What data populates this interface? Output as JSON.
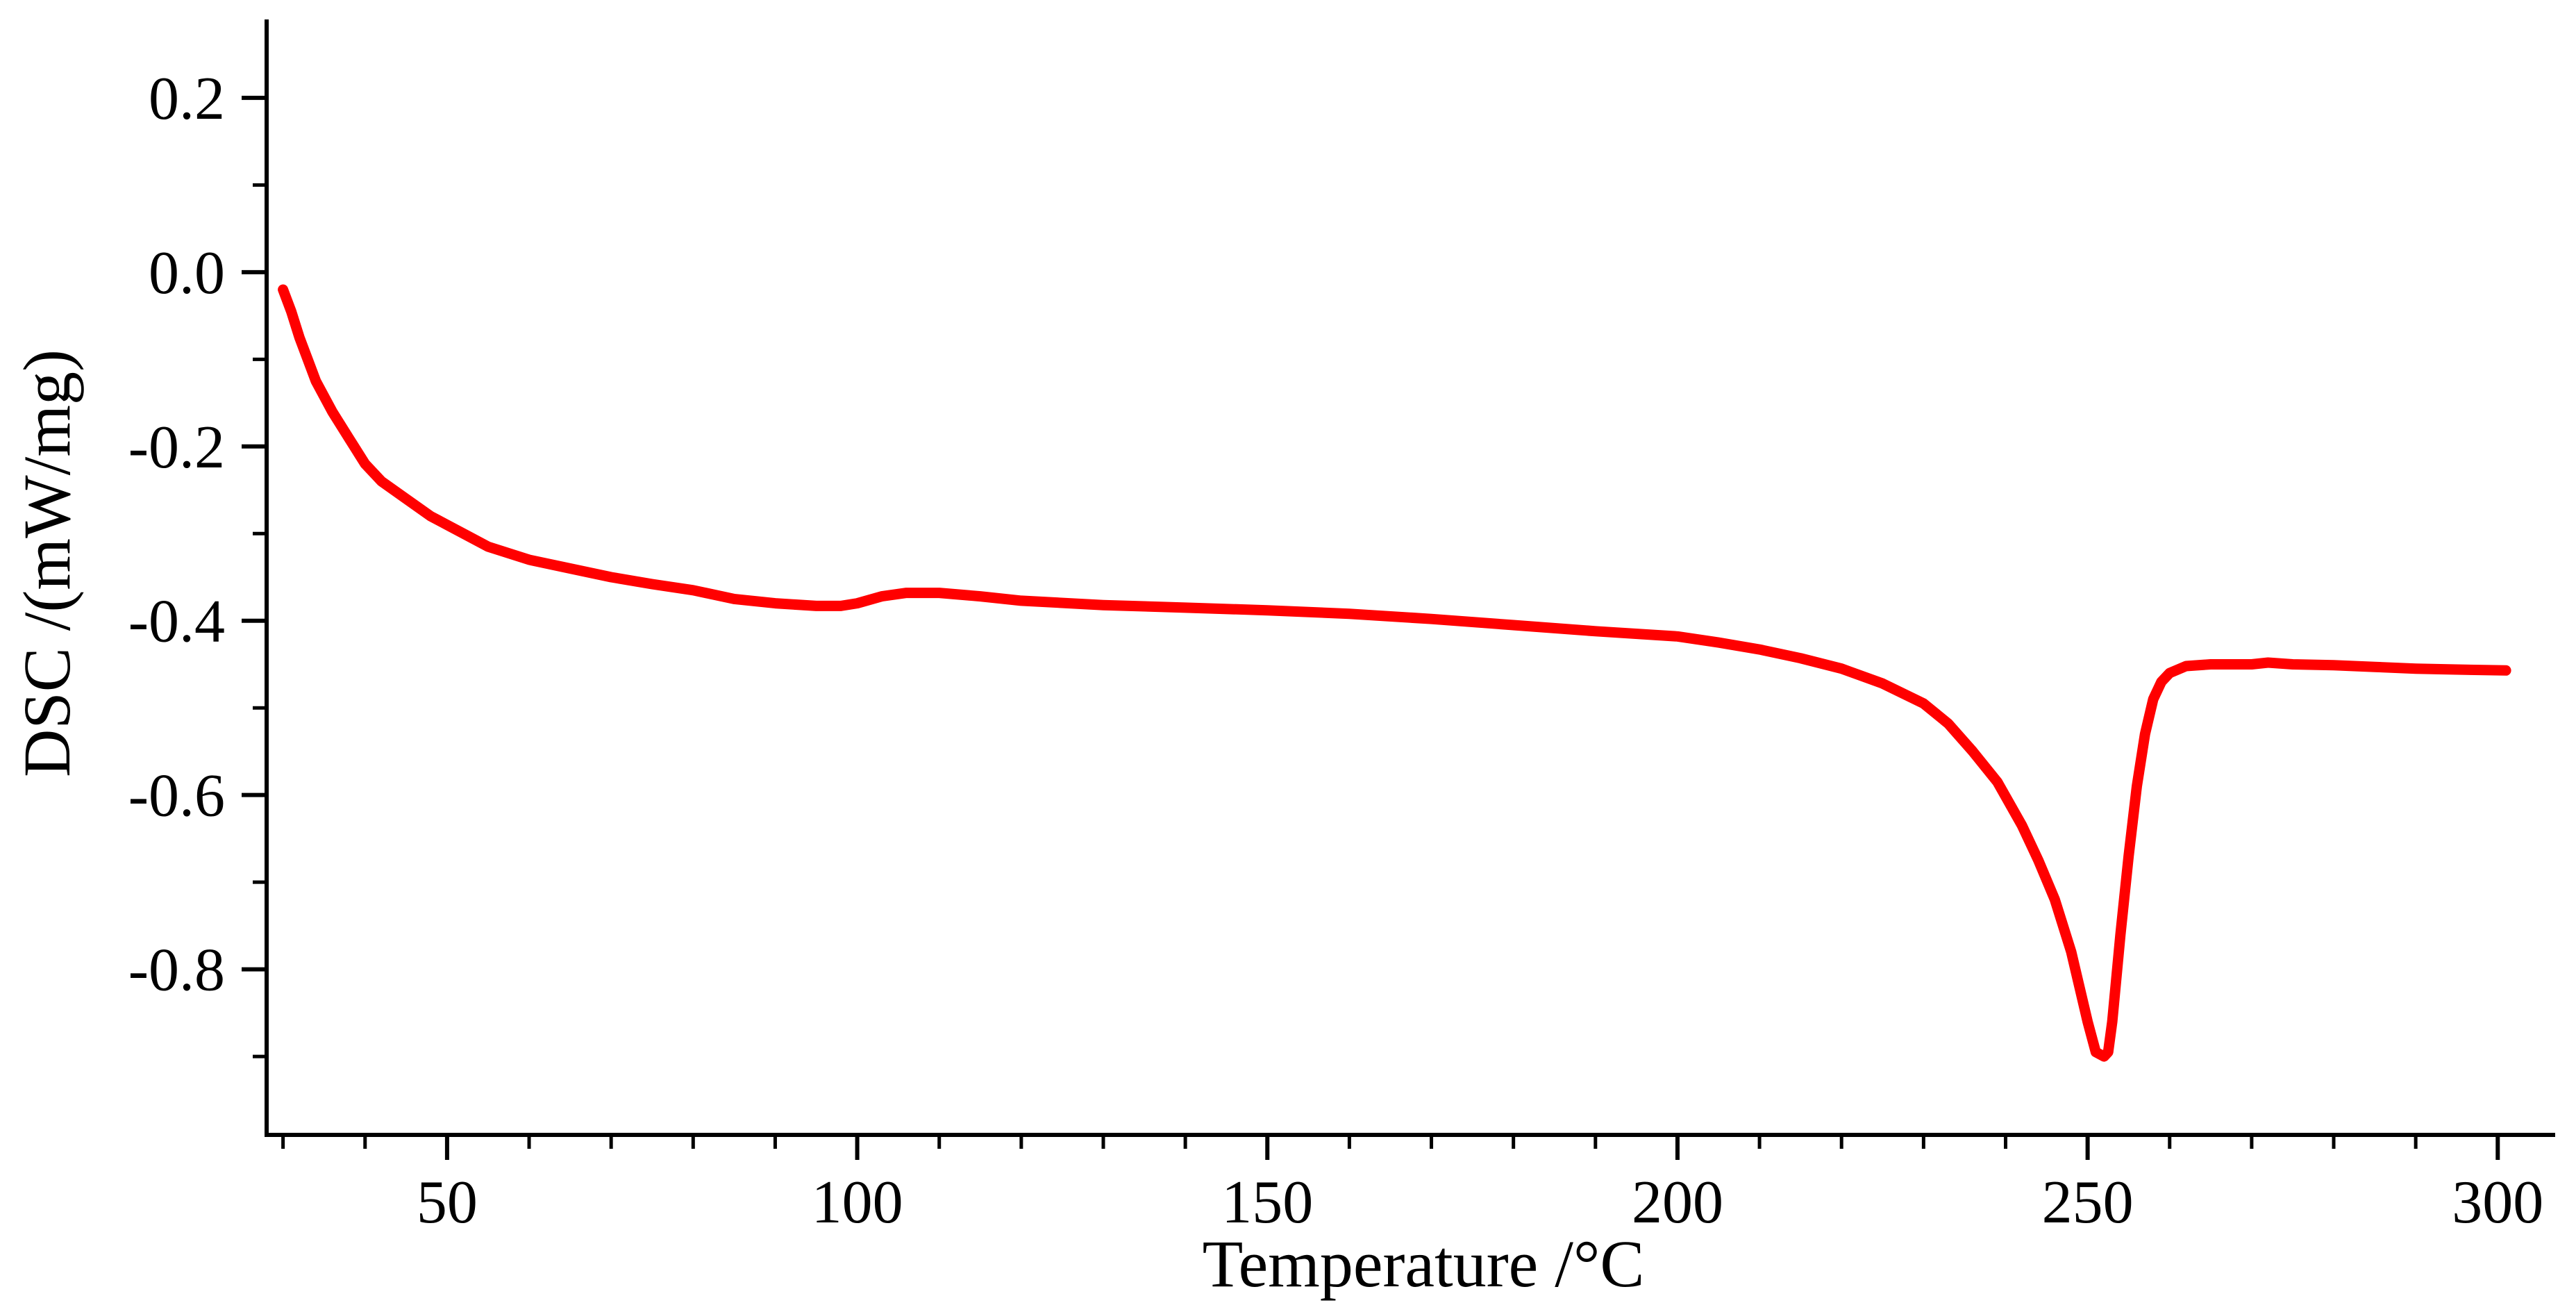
{
  "chart_data": {
    "type": "line",
    "title": "",
    "xlabel": "Temperature /°C",
    "ylabel": "DSC /(mW/mg)",
    "xlim": [
      28,
      307
    ],
    "ylim": [
      -0.99,
      0.29
    ],
    "x_ticks": [
      50,
      100,
      150,
      200,
      250,
      300
    ],
    "x_tick_labels": [
      "50",
      "100",
      "150",
      "200",
      "250",
      "300"
    ],
    "y_ticks": [
      0.2,
      0.0,
      -0.2,
      -0.4,
      -0.6,
      -0.8
    ],
    "y_tick_labels": [
      "0.2",
      "0.0",
      "-0.2",
      "-0.4",
      "-0.6",
      "-0.8"
    ],
    "x_minor_step": 10,
    "y_minor_step": 0.1,
    "grid": false,
    "legend": "none",
    "series": [
      {
        "color": "#ff0000",
        "x": [
          30,
          31,
          32,
          33,
          34,
          36,
          38,
          40,
          42,
          45,
          48,
          50,
          55,
          60,
          65,
          70,
          75,
          80,
          85,
          90,
          95,
          98,
          100,
          103,
          106,
          110,
          115,
          120,
          130,
          140,
          150,
          160,
          170,
          180,
          190,
          200,
          205,
          210,
          215,
          220,
          225,
          230,
          233,
          236,
          239,
          242,
          244,
          246,
          248,
          249,
          250,
          251,
          252,
          252.5,
          253,
          253.5,
          254,
          255,
          256,
          257,
          258,
          259,
          260,
          262,
          265,
          270,
          272,
          275,
          280,
          285,
          290,
          295,
          301
        ],
        "y": [
          -0.02,
          -0.045,
          -0.075,
          -0.1,
          -0.125,
          -0.16,
          -0.19,
          -0.22,
          -0.24,
          -0.26,
          -0.28,
          -0.29,
          -0.315,
          -0.33,
          -0.34,
          -0.35,
          -0.358,
          -0.365,
          -0.375,
          -0.38,
          -0.383,
          -0.383,
          -0.38,
          -0.372,
          -0.368,
          -0.368,
          -0.372,
          -0.377,
          -0.382,
          -0.385,
          -0.388,
          -0.392,
          -0.398,
          -0.405,
          -0.412,
          -0.418,
          -0.425,
          -0.433,
          -0.443,
          -0.455,
          -0.472,
          -0.495,
          -0.518,
          -0.55,
          -0.585,
          -0.635,
          -0.675,
          -0.72,
          -0.78,
          -0.82,
          -0.86,
          -0.895,
          -0.9,
          -0.895,
          -0.86,
          -0.81,
          -0.76,
          -0.67,
          -0.59,
          -0.53,
          -0.49,
          -0.47,
          -0.46,
          -0.452,
          -0.45,
          -0.45,
          -0.448,
          -0.45,
          -0.451,
          -0.453,
          -0.455,
          -0.456,
          -0.457
        ]
      }
    ]
  }
}
